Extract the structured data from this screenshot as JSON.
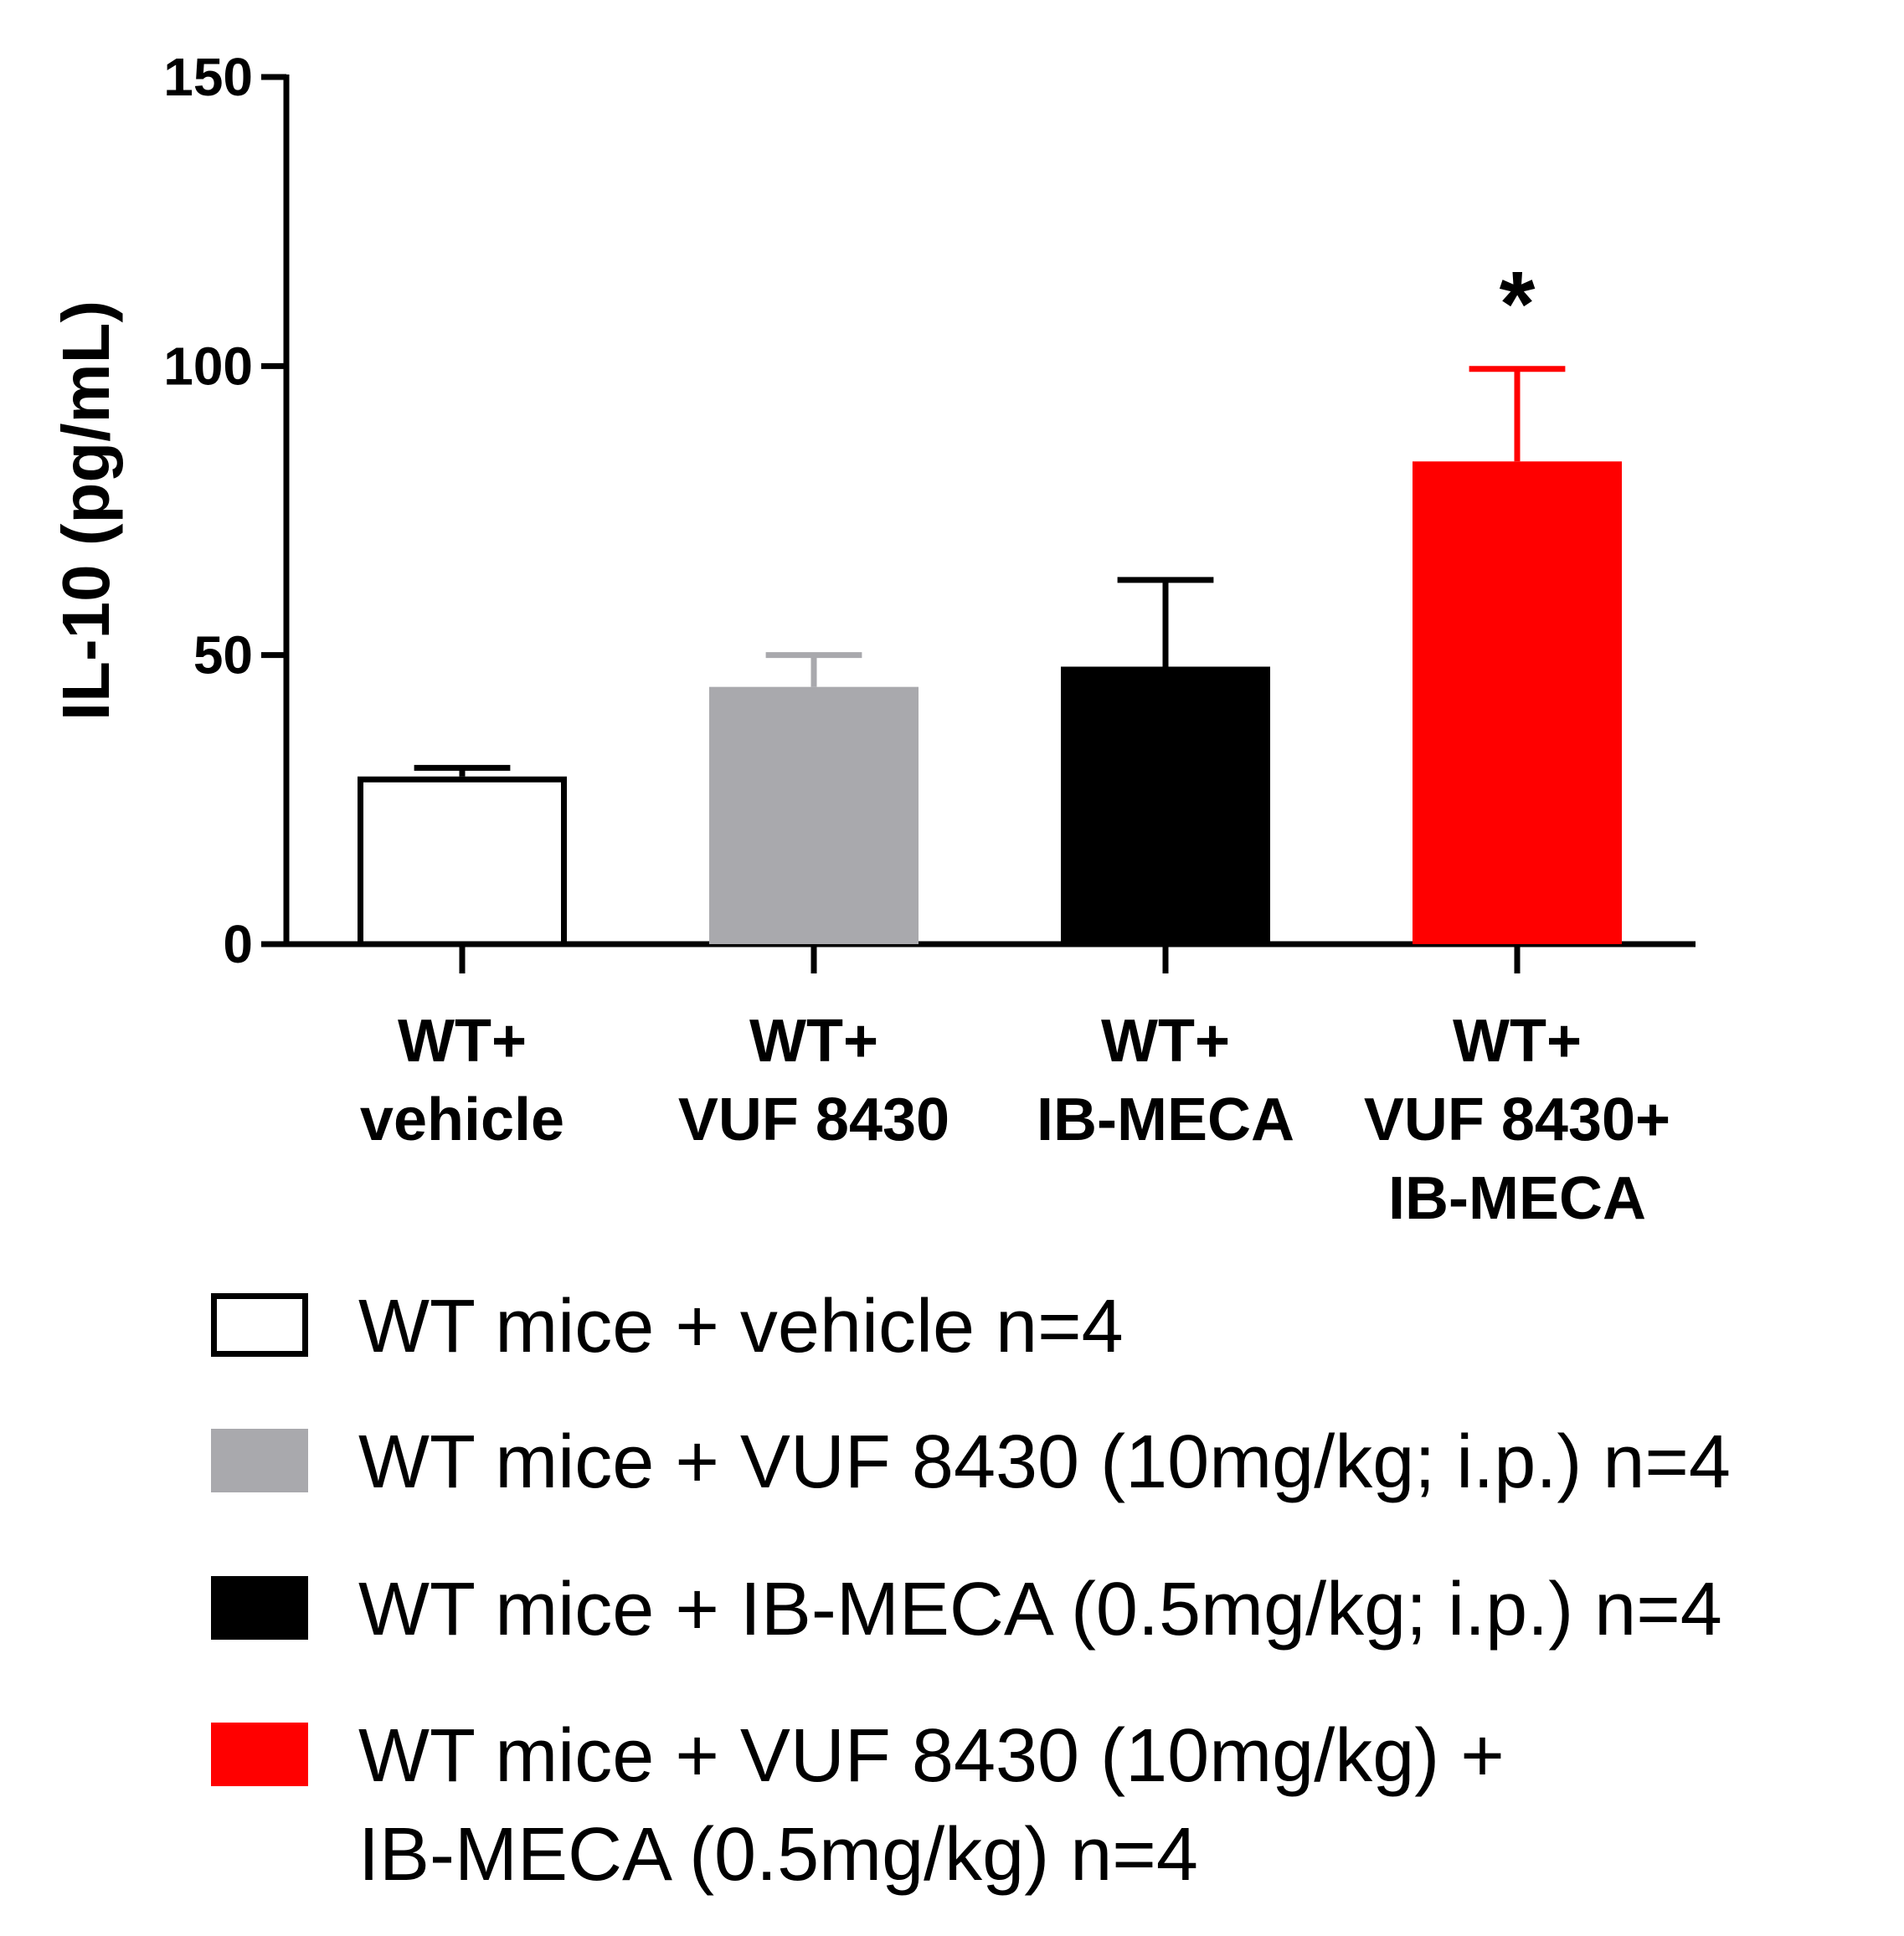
{
  "chart_data": {
    "type": "bar",
    "title": "",
    "xlabel": "",
    "ylabel": "IL-10 (pg/mL)",
    "ylim": [
      0,
      150
    ],
    "yticks": [
      0,
      50,
      100,
      150
    ],
    "yticklabels": [
      "0",
      "50",
      "100",
      "150"
    ],
    "categories": [
      [
        "WT+",
        "vehicle"
      ],
      [
        "WT+",
        "VUF 8430"
      ],
      [
        "WT+",
        "IB-MECA"
      ],
      [
        "WT+",
        "VUF 8430+",
        "IB-MECA"
      ]
    ],
    "values": [
      29,
      44.5,
      48,
      83.5
    ],
    "errors": [
      1.5,
      5.5,
      15,
      16
    ],
    "colors": [
      "#ffffff",
      "#a9a9ad",
      "#000000",
      "#ff0000"
    ],
    "significance": [
      "",
      "",
      "",
      "*"
    ],
    "legend": [
      {
        "color": "#ffffff",
        "lines": [
          "WT mice + vehicle n=4"
        ]
      },
      {
        "color": "#a9a9ad",
        "lines": [
          "WT mice + VUF 8430 (10mg/kg; i.p.) n=4"
        ]
      },
      {
        "color": "#000000",
        "lines": [
          "WT mice + IB-MECA (0.5mg/kg; i.p.) n=4"
        ]
      },
      {
        "color": "#ff0000",
        "lines": [
          "WT mice + VUF 8430 (10mg/kg) +",
          "IB-MECA (0.5mg/kg) n=4"
        ]
      }
    ]
  }
}
